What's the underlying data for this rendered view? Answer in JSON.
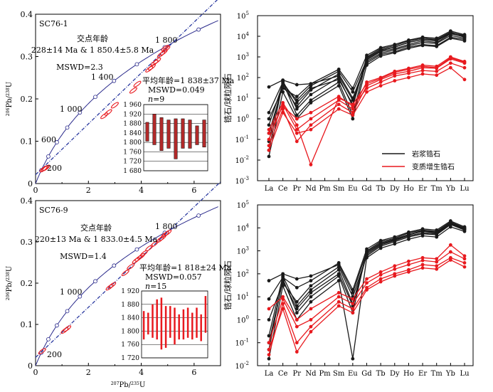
{
  "chart_data": [
    {
      "type": "scatter",
      "panel": "concordia-top",
      "sample_label": "SC76-1",
      "title_lines": [
        "交点年龄",
        "228±14 Ma & 1 850.4±5.8 Ma",
        "MSWD=2.3"
      ],
      "xlabel_sup": "207",
      "xlabel_main": "Pb/",
      "xlabel_sup2": "235",
      "xlabel_tail": "U",
      "ylabel_sup": "206",
      "ylabel_main": "Pb/",
      "ylabel_sup2": "238",
      "ylabel_tail": "U",
      "xlim": [
        0,
        7
      ],
      "ylim": [
        0,
        0.4
      ],
      "xticks": [
        "0",
        "2",
        "4",
        "6"
      ],
      "yticks": [
        "0",
        "0.1",
        "0.2",
        "0.3",
        "0.4"
      ],
      "age_marks": [
        "200",
        "600",
        "1 000",
        "1 400",
        "1 800"
      ],
      "discordia": {
        "lower_age_ma": 228,
        "upper_age_ma": 1850.4
      },
      "analyses": [
        {
          "x": 0.3,
          "y": 0.034
        },
        {
          "x": 0.35,
          "y": 0.036
        },
        {
          "x": 0.4,
          "y": 0.037
        },
        {
          "x": 2.6,
          "y": 0.16
        },
        {
          "x": 2.75,
          "y": 0.168
        },
        {
          "x": 3.0,
          "y": 0.185
        },
        {
          "x": 3.7,
          "y": 0.22
        },
        {
          "x": 3.85,
          "y": 0.235
        },
        {
          "x": 4.3,
          "y": 0.27
        },
        {
          "x": 4.5,
          "y": 0.285
        },
        {
          "x": 4.6,
          "y": 0.29
        },
        {
          "x": 4.75,
          "y": 0.305
        },
        {
          "x": 4.85,
          "y": 0.31
        },
        {
          "x": 4.95,
          "y": 0.318
        },
        {
          "x": 4.4,
          "y": 0.275
        },
        {
          "x": 4.9,
          "y": 0.32
        }
      ],
      "inset": {
        "title_lines": [
          "平均年龄=1 838±37 Ma",
          "MSWD=0.049"
        ],
        "n_label": "n",
        "n_value": "=9",
        "yticks": [
          "1 960",
          "1 920",
          "1 880",
          "1 840",
          "1 800",
          "1 760",
          "1 720",
          "1 680"
        ],
        "ylim": [
          1680,
          1960
        ],
        "bars": [
          [
            1805,
            1885
          ],
          [
            1790,
            1920
          ],
          [
            1765,
            1905
          ],
          [
            1775,
            1895
          ],
          [
            1730,
            1900
          ],
          [
            1775,
            1900
          ],
          [
            1775,
            1895
          ],
          [
            1790,
            1870
          ],
          [
            1780,
            1895
          ]
        ]
      }
    },
    {
      "type": "line",
      "panel": "ree-top",
      "yscale": "log",
      "ylabel": "锆石/球粒陨石",
      "categories": [
        "La",
        "Ce",
        "Pr",
        "Nd",
        "Pm",
        "Sm",
        "Eu",
        "Gd",
        "Tb",
        "Dy",
        "Ho",
        "Er",
        "Tm",
        "Yb",
        "Lu"
      ],
      "ylim_exp": [
        -3,
        5
      ],
      "yticks": [
        "10",
        "10",
        "10",
        "10",
        "10",
        "10",
        "10",
        "10",
        "10"
      ],
      "ytick_exp": [
        "5",
        "4",
        "3",
        "2",
        "1",
        "0",
        "-1",
        "-2",
        "-3"
      ],
      "legend": [
        {
          "name": "岩浆锆石",
          "color": "#1a1a1a"
        },
        {
          "name": "变质增生锆石",
          "color": "#e8191e"
        }
      ],
      "legend_position": "lower-right",
      "series": [
        {
          "group": "magmatic",
          "values": [
            0.03,
            60,
            1.5,
            8,
            null,
            60,
            1.5,
            800,
            2000,
            3000,
            5000,
            7000,
            6000,
            14000,
            9000
          ]
        },
        {
          "group": "magmatic",
          "values": [
            0.08,
            70,
            3,
            15,
            null,
            100,
            4,
            1000,
            2500,
            3500,
            6000,
            8000,
            7000,
            16000,
            10000
          ]
        },
        {
          "group": "magmatic",
          "values": [
            0.2,
            40,
            4,
            25,
            null,
            150,
            10,
            600,
            1500,
            2200,
            3500,
            5000,
            4500,
            11000,
            8000
          ]
        },
        {
          "group": "magmatic",
          "values": [
            0.5,
            50,
            8,
            40,
            null,
            200,
            20,
            700,
            1800,
            2500,
            4000,
            6000,
            5000,
            13000,
            9500
          ]
        },
        {
          "group": "magmatic",
          "values": [
            1,
            30,
            12,
            50,
            null,
            120,
            8,
            500,
            1300,
            1800,
            3000,
            4000,
            3500,
            9000,
            7000
          ]
        },
        {
          "group": "magmatic",
          "values": [
            2,
            60,
            6,
            30,
            null,
            80,
            5,
            900,
            2200,
            3000,
            5200,
            7000,
            6500,
            15000,
            11000
          ]
        },
        {
          "group": "magmatic",
          "values": [
            0.015,
            20,
            1,
            6,
            null,
            40,
            1,
            400,
            1100,
            1600,
            2600,
            3600,
            3200,
            8000,
            6000
          ]
        },
        {
          "group": "magmatic",
          "values": [
            35,
            75,
            45,
            50,
            null,
            250,
            30,
            1200,
            2800,
            4000,
            6500,
            9000,
            8000,
            18000,
            12000
          ]
        },
        {
          "group": "metamorphic",
          "values": [
            0.05,
            3,
            0.08,
            0.5,
            null,
            5,
            2,
            40,
            80,
            150,
            200,
            300,
            280,
            800,
            500
          ]
        },
        {
          "group": "metamorphic",
          "values": [
            0.1,
            5,
            0.3,
            1,
            null,
            8,
            3,
            60,
            100,
            200,
            280,
            400,
            350,
            1000,
            600
          ]
        },
        {
          "group": "metamorphic",
          "values": [
            0.3,
            6,
            0.5,
            0.006,
            null,
            10,
            5,
            50,
            90,
            180,
            250,
            350,
            300,
            900,
            550
          ]
        },
        {
          "group": "metamorphic",
          "values": [
            0.03,
            2,
            0.2,
            0.3,
            null,
            3,
            1.5,
            20,
            40,
            70,
            100,
            150,
            130,
            300,
            80
          ]
        },
        {
          "group": "metamorphic",
          "values": [
            0.2,
            4,
            1,
            2,
            null,
            12,
            4,
            30,
            60,
            120,
            160,
            220,
            200,
            500,
            300
          ]
        }
      ]
    },
    {
      "type": "scatter",
      "panel": "concordia-bottom",
      "sample_label": "SC76-9",
      "title_lines": [
        "交点年龄",
        "220±13 Ma & 1 833.0±4.5 Ma",
        "MSWD=1.4"
      ],
      "xlabel_sup": "207",
      "xlabel_main": "Pb/",
      "xlabel_sup2": "235",
      "xlabel_tail": "U",
      "ylabel_sup": "206",
      "ylabel_main": "Pb/",
      "ylabel_sup2": "238",
      "ylabel_tail": "U",
      "xlim": [
        0,
        7
      ],
      "ylim": [
        0,
        0.4
      ],
      "xticks": [
        "0",
        "2",
        "4",
        "6"
      ],
      "yticks": [
        "0",
        "0.1",
        "0.2",
        "0.3",
        "0.4"
      ],
      "age_marks": [
        "200",
        "1 000",
        "1 800"
      ],
      "discordia": {
        "lower_age_ma": 220,
        "upper_age_ma": 1833.0
      },
      "analyses": [
        {
          "x": 0.25,
          "y": 0.035
        },
        {
          "x": 1.1,
          "y": 0.085
        },
        {
          "x": 1.2,
          "y": 0.09
        },
        {
          "x": 2.8,
          "y": 0.19
        },
        {
          "x": 2.9,
          "y": 0.195
        },
        {
          "x": 3.4,
          "y": 0.225
        },
        {
          "x": 3.6,
          "y": 0.24
        },
        {
          "x": 3.8,
          "y": 0.255
        },
        {
          "x": 3.9,
          "y": 0.26
        },
        {
          "x": 4.0,
          "y": 0.265
        },
        {
          "x": 4.1,
          "y": 0.272
        },
        {
          "x": 4.3,
          "y": 0.285
        },
        {
          "x": 4.5,
          "y": 0.295
        },
        {
          "x": 4.7,
          "y": 0.305
        },
        {
          "x": 4.8,
          "y": 0.31
        },
        {
          "x": 4.9,
          "y": 0.318
        },
        {
          "x": 5.0,
          "y": 0.322
        }
      ],
      "inset": {
        "title_lines": [
          "平均年龄=1 818±24 Ma",
          "MSWD=0.057"
        ],
        "n_label": "n",
        "n_value": "=15",
        "yticks": [
          "1 920",
          "1 880",
          "1 840",
          "1 800",
          "1 760",
          "1 720"
        ],
        "ylim": [
          1720,
          1920
        ],
        "bars": [
          [
            1775,
            1860
          ],
          [
            1790,
            1855
          ],
          [
            1780,
            1880
          ],
          [
            1775,
            1895
          ],
          [
            1745,
            1900
          ],
          [
            1750,
            1875
          ],
          [
            1780,
            1875
          ],
          [
            1760,
            1870
          ],
          [
            1775,
            1850
          ],
          [
            1775,
            1865
          ],
          [
            1780,
            1870
          ],
          [
            1775,
            1855
          ],
          [
            1780,
            1870
          ],
          [
            1770,
            1850
          ],
          [
            1795,
            1905
          ]
        ]
      }
    },
    {
      "type": "line",
      "panel": "ree-bottom",
      "yscale": "log",
      "ylabel": "锆石/球粒陨石",
      "categories": [
        "La",
        "Ce",
        "Pr",
        "Nd",
        "Pm",
        "Sm",
        "Eu",
        "Gd",
        "Tb",
        "Dy",
        "Ho",
        "Er",
        "Tm",
        "Yb",
        "Lu"
      ],
      "ylim_exp": [
        -2,
        5
      ],
      "yticks": [
        "10",
        "10",
        "10",
        "10",
        "10",
        "10",
        "10",
        "10"
      ],
      "ytick_exp": [
        "5",
        "4",
        "3",
        "2",
        "1",
        "0",
        "-1",
        "-2"
      ],
      "series": [
        {
          "group": "magmatic",
          "values": [
            0.05,
            60,
            2,
            10,
            null,
            80,
            2,
            1000,
            2500,
            3500,
            6000,
            8000,
            7000,
            18000,
            10000
          ]
        },
        {
          "group": "magmatic",
          "values": [
            0.2,
            80,
            4,
            20,
            null,
            150,
            5,
            800,
            2000,
            3000,
            5000,
            7000,
            6000,
            16000,
            9000
          ]
        },
        {
          "group": "magmatic",
          "values": [
            1,
            40,
            6,
            30,
            null,
            200,
            10,
            600,
            1600,
            2500,
            4000,
            5500,
            5000,
            14000,
            8000
          ]
        },
        {
          "group": "magmatic",
          "values": [
            0.02,
            30,
            1,
            6,
            null,
            50,
            0.02,
            500,
            1300,
            2000,
            3200,
            4500,
            4000,
            11000,
            7000
          ]
        },
        {
          "group": "magmatic",
          "values": [
            8,
            70,
            25,
            50,
            null,
            300,
            20,
            1200,
            2800,
            4000,
            6500,
            9000,
            8000,
            20000,
            11000
          ]
        },
        {
          "group": "magmatic",
          "values": [
            50,
            100,
            60,
            80,
            null,
            250,
            15,
            900,
            2200,
            3200,
            5200,
            7500,
            6500,
            17000,
            9500
          ]
        },
        {
          "group": "magmatic",
          "values": [
            0.1,
            50,
            3,
            15,
            null,
            100,
            4,
            700,
            1800,
            2800,
            4500,
            6000,
            5500,
            15000,
            8500
          ]
        },
        {
          "group": "metamorphic",
          "values": [
            0.03,
            5,
            0.1,
            0.5,
            null,
            6,
            3,
            25,
            60,
            100,
            150,
            250,
            220,
            500,
            300
          ]
        },
        {
          "group": "metamorphic",
          "values": [
            0.1,
            8,
            0.5,
            1,
            null,
            10,
            5,
            40,
            90,
            160,
            250,
            380,
            330,
            900,
            450
          ]
        },
        {
          "group": "metamorphic",
          "values": [
            3,
            10,
            1,
            3,
            null,
            15,
            8,
            60,
            120,
            220,
            350,
            500,
            450,
            1800,
            600
          ]
        },
        {
          "group": "metamorphic",
          "values": [
            0.05,
            3,
            0.04,
            0.3,
            null,
            4,
            2,
            20,
            45,
            80,
            120,
            180,
            160,
            400,
            200
          ]
        }
      ]
    }
  ]
}
